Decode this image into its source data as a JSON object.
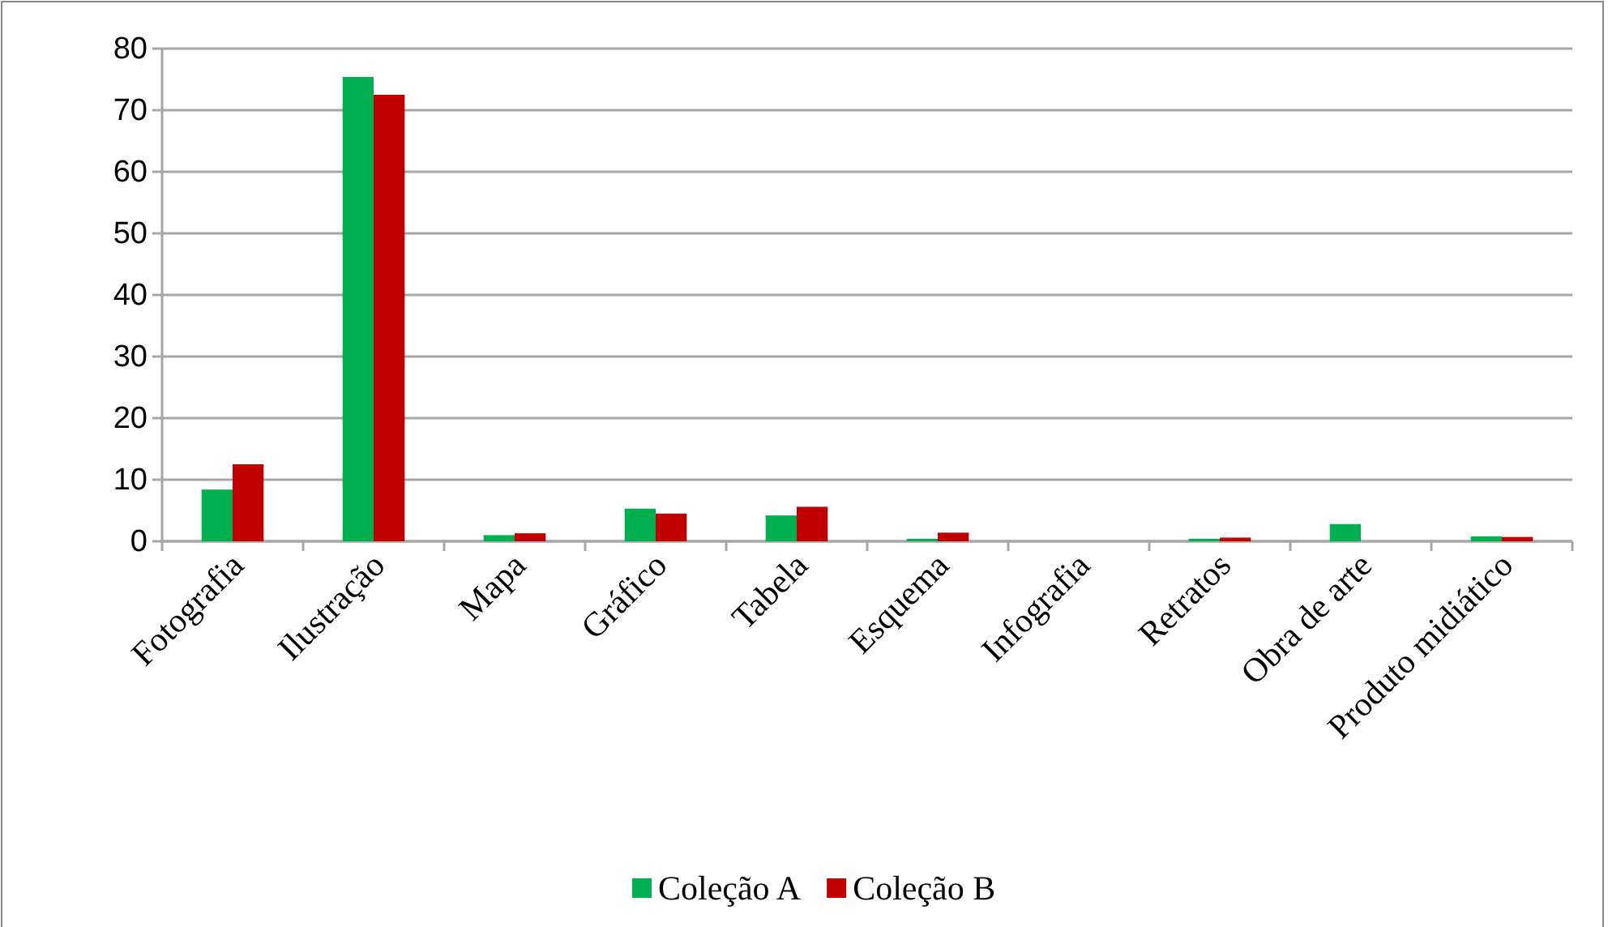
{
  "chart_data": {
    "type": "bar",
    "categories": [
      "Fotografia",
      "Ilustração",
      "Mapa",
      "Gráfico",
      "Tabela",
      "Esquema",
      "Infografia",
      "Retratos",
      "Obra de arte",
      "Produto midiático"
    ],
    "series": [
      {
        "name": "Coleção A",
        "color": "#00b050",
        "values": [
          8.4,
          75.4,
          1.0,
          5.3,
          4.2,
          0.4,
          0,
          0.4,
          2.8,
          0.8
        ]
      },
      {
        "name": "Coleção B",
        "color": "#c00000",
        "values": [
          12.5,
          72.5,
          1.3,
          4.5,
          5.6,
          1.4,
          0,
          0.6,
          0,
          0.7
        ]
      }
    ],
    "ylim": [
      0,
      80
    ],
    "yticks": [
      0,
      10,
      20,
      30,
      40,
      50,
      60,
      70,
      80
    ],
    "grid": "y",
    "legend": "bottom"
  }
}
